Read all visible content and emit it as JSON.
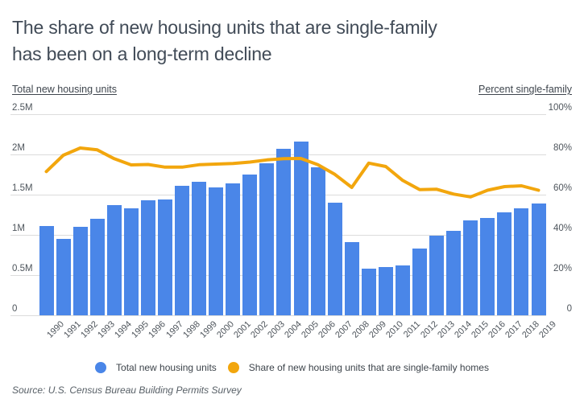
{
  "title": {
    "line1": "The share of new housing units that are single-family",
    "line2": "has been on a long-term decline"
  },
  "axes": {
    "left_header": "Total new housing units",
    "right_header": "Percent single-family"
  },
  "legend": [
    {
      "label": "Total new housing units",
      "color": "#4a86e8"
    },
    {
      "label": "Share of new housing units that are single-family homes",
      "color": "#f2a60d"
    }
  ],
  "source": "Source: U.S. Census Bureau Building Permits Survey",
  "colors": {
    "bar": "#4a86e8",
    "line": "#f2a60d",
    "grid": "#dcdcdc",
    "title": "#414b57",
    "tick_text": "#4e555c"
  },
  "chart_data": {
    "type": "bar",
    "title": "The share of new housing units that are single-family has been on a long-term decline",
    "categories": [
      "1990",
      "1991",
      "1992",
      "1993",
      "1994",
      "1995",
      "1996",
      "1997",
      "1998",
      "1999",
      "2000",
      "2001",
      "2002",
      "2003",
      "2004",
      "2005",
      "2006",
      "2007",
      "2008",
      "2009",
      "2010",
      "2011",
      "2012",
      "2013",
      "2014",
      "2015",
      "2016",
      "2017",
      "2018",
      "2019"
    ],
    "series": [
      {
        "name": "Total new housing units",
        "type": "bar",
        "axis": "left",
        "unit": "millions of units",
        "values": [
          1.11,
          0.95,
          1.1,
          1.2,
          1.37,
          1.33,
          1.43,
          1.44,
          1.61,
          1.66,
          1.59,
          1.64,
          1.75,
          1.89,
          2.07,
          2.16,
          1.84,
          1.4,
          0.91,
          0.58,
          0.6,
          0.62,
          0.83,
          0.99,
          1.05,
          1.18,
          1.21,
          1.28,
          1.33,
          1.39
        ]
      },
      {
        "name": "Share of new housing units that are single-family homes",
        "type": "line",
        "axis": "right",
        "unit": "percent",
        "values": [
          71.5,
          79.6,
          83.2,
          82.3,
          77.9,
          74.8,
          75.0,
          73.7,
          73.7,
          74.9,
          75.2,
          75.5,
          76.2,
          77.3,
          77.9,
          78.0,
          74.9,
          70.1,
          63.6,
          75.7,
          74.0,
          67.1,
          62.5,
          62.7,
          60.3,
          58.9,
          62.2,
          64.0,
          64.4,
          62.2
        ]
      }
    ],
    "left_axis": {
      "label": "Total new housing units",
      "ticks": [
        "2.5M",
        "2M",
        "1.5M",
        "1M",
        "0.5M",
        "0"
      ],
      "range": [
        0,
        2500000
      ]
    },
    "right_axis": {
      "label": "Percent single-family",
      "ticks": [
        "100%",
        "80%",
        "60%",
        "40%",
        "20%",
        "0"
      ],
      "range": [
        0,
        100
      ]
    },
    "grid": true,
    "legend_position": "bottom",
    "source": "Source: U.S. Census Bureau Building Permits Survey"
  }
}
